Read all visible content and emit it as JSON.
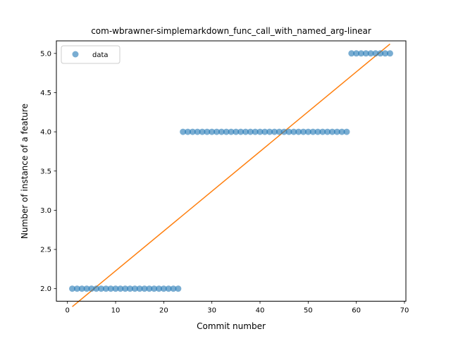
{
  "chart_data": {
    "type": "scatter",
    "title": "com-wbrawner-simplemarkdown_func_call_with_named_arg-linear",
    "xlabel": "Commit number",
    "ylabel": "Number of instance of a feature",
    "xlim": [
      -2.3,
      70.3
    ],
    "ylim": [
      1.84,
      5.16
    ],
    "xticks": [
      0,
      10,
      20,
      30,
      40,
      50,
      60,
      70
    ],
    "yticks": [
      2.0,
      2.5,
      3.0,
      3.5,
      4.0,
      4.5,
      5.0
    ],
    "xtick_labels": [
      "0",
      "10",
      "20",
      "30",
      "40",
      "50",
      "60",
      "70"
    ],
    "ytick_labels": [
      "2.0",
      "2.5",
      "3.0",
      "3.5",
      "4.0",
      "4.5",
      "5.0"
    ],
    "grid": false,
    "legend": {
      "position": "upper-left",
      "entries": [
        "data"
      ]
    },
    "colors": {
      "data": "#1f77b4",
      "fit": "#ff7f0e"
    },
    "series": [
      {
        "name": "data",
        "kind": "scatter",
        "x": [
          1,
          2,
          3,
          4,
          5,
          6,
          7,
          8,
          9,
          10,
          11,
          12,
          13,
          14,
          15,
          16,
          17,
          18,
          19,
          20,
          21,
          22,
          23,
          24,
          25,
          26,
          27,
          28,
          29,
          30,
          31,
          32,
          33,
          34,
          35,
          36,
          37,
          38,
          39,
          40,
          41,
          42,
          43,
          44,
          45,
          46,
          47,
          48,
          49,
          50,
          51,
          52,
          53,
          54,
          55,
          56,
          57,
          58,
          59,
          60,
          61,
          62,
          63,
          64,
          65,
          66,
          67
        ],
        "y": [
          2,
          2,
          2,
          2,
          2,
          2,
          2,
          2,
          2,
          2,
          2,
          2,
          2,
          2,
          2,
          2,
          2,
          2,
          2,
          2,
          2,
          2,
          2,
          4,
          4,
          4,
          4,
          4,
          4,
          4,
          4,
          4,
          4,
          4,
          4,
          4,
          4,
          4,
          4,
          4,
          4,
          4,
          4,
          4,
          4,
          4,
          4,
          4,
          4,
          4,
          4,
          4,
          4,
          4,
          4,
          4,
          4,
          4,
          5,
          5,
          5,
          5,
          5,
          5,
          5,
          5,
          5
        ]
      },
      {
        "kind": "line",
        "x": [
          1,
          67
        ],
        "y": [
          1.77,
          5.12
        ]
      }
    ]
  }
}
